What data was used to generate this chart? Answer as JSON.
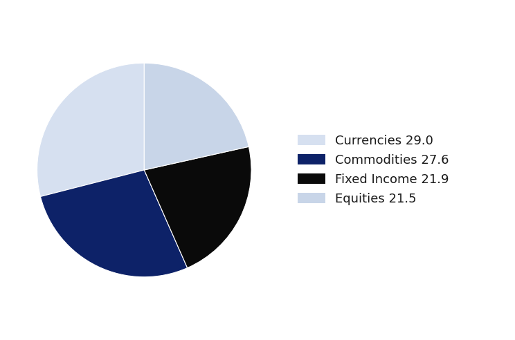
{
  "labels": [
    "Currencies 29.0",
    "Commodities 27.6",
    "Fixed Income 21.9",
    "Equities 21.5"
  ],
  "values": [
    29.0,
    27.6,
    21.9,
    21.5
  ],
  "colors": [
    "#d6e0f0",
    "#0d2268",
    "#0a0a0a",
    "#c8d5e8"
  ],
  "startangle": 90,
  "figsize": [
    7.44,
    4.92
  ],
  "dpi": 100,
  "legend_fontsize": 13,
  "background_color": "#ffffff"
}
